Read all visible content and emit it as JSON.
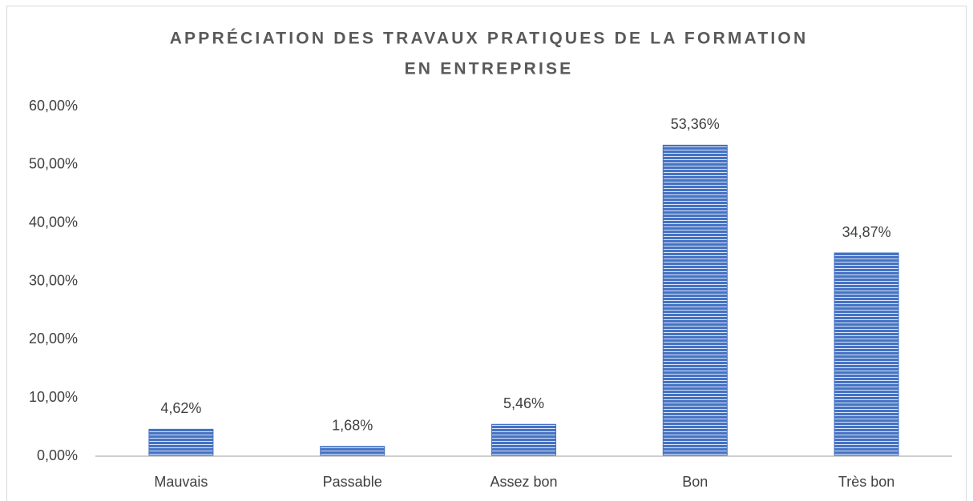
{
  "chart_data": {
    "type": "bar",
    "title": [
      "APPRÉCIATION DES TRAVAUX PRATIQUES DE LA FORMATION",
      "EN ENTREPRISE"
    ],
    "categories": [
      "Mauvais",
      "Passable",
      "Assez bon",
      "Bon",
      "Très bon"
    ],
    "values": [
      4.62,
      1.68,
      5.46,
      53.36,
      34.87
    ],
    "value_labels": [
      "4,62%",
      "1,68%",
      "5,46%",
      "53,36%",
      "34,87%"
    ],
    "color": "#4472c4",
    "ylim": [
      0,
      60
    ],
    "yticks": [
      {
        "value": 0,
        "label": "0,00%"
      },
      {
        "value": 10,
        "label": "10,00%"
      },
      {
        "value": 20,
        "label": "20,00%"
      },
      {
        "value": 30,
        "label": "30,00%"
      },
      {
        "value": 40,
        "label": "40,00%"
      },
      {
        "value": 50,
        "label": "50,00%"
      },
      {
        "value": 60,
        "label": "60,00%"
      }
    ],
    "grid": false
  }
}
